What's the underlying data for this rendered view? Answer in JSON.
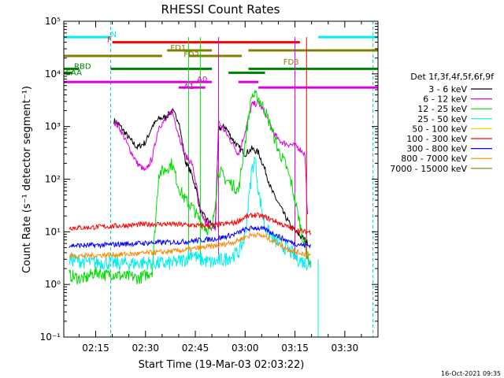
{
  "chart_data": {
    "type": "line",
    "title": "RHESSI Count Rates",
    "xlabel": "Start Time (19-Mar-03 02:03:22)",
    "ylabel": "Count Rate (s⁻¹ detector segment⁻¹)",
    "y_scale": "log",
    "ylim": [
      0.1,
      100000
    ],
    "xlim_minutes": [
      5.4,
      100
    ],
    "x_ticks": [
      {
        "label": "02:15",
        "min": 15
      },
      {
        "label": "02:30",
        "min": 30
      },
      {
        "label": "02:45",
        "min": 45
      },
      {
        "label": "03:00",
        "min": 60
      },
      {
        "label": "03:15",
        "min": 75
      },
      {
        "label": "03:30",
        "min": 90
      }
    ],
    "y_ticks": [
      {
        "label": "10⁻¹",
        "v": 0.1
      },
      {
        "label": "10⁰",
        "v": 1
      },
      {
        "label": "10¹",
        "v": 10
      },
      {
        "label": "10²",
        "v": 100
      },
      {
        "label": "10³",
        "v": 1000
      },
      {
        "label": "10⁴",
        "v": 10000
      },
      {
        "label": "10⁵",
        "v": 100000
      }
    ],
    "legend_title": "Det 1f,3f,4f,5f,6f,9f",
    "legend_placement": "right",
    "series": [
      {
        "name": "3 - 6 keV",
        "color": "#000000",
        "x": [
          19.8,
          20.5,
          22,
          25,
          27.5,
          30,
          32,
          34,
          36,
          38,
          40,
          42,
          44,
          45.5,
          46.5,
          48,
          50,
          51,
          52,
          54,
          56,
          58,
          60,
          62,
          64,
          66,
          68,
          70,
          72,
          74,
          76,
          78,
          79
        ],
        "y": [
          null,
          1300,
          1100,
          600,
          400,
          500,
          1000,
          1400,
          1500,
          2000,
          1300,
          220,
          120,
          55,
          25,
          18,
          14,
          12,
          900,
          1000,
          600,
          400,
          300,
          380,
          320,
          150,
          60,
          35,
          20,
          12,
          9,
          7,
          6
        ]
      },
      {
        "name": "6 - 12 keV",
        "color": "#dd00dd",
        "x": [
          19.8,
          20.5,
          22,
          25,
          27.5,
          30,
          32,
          34,
          36,
          38,
          40,
          42,
          44,
          45.5,
          46.5,
          48,
          50,
          51,
          52,
          54,
          56,
          58,
          60,
          62,
          64,
          66,
          68,
          70,
          72,
          74,
          76,
          78,
          79
        ],
        "y": [
          null,
          1200,
          1000,
          400,
          200,
          140,
          250,
          1000,
          1300,
          2000,
          700,
          280,
          200,
          65,
          25,
          15,
          12,
          10,
          1200,
          800,
          500,
          300,
          800,
          2600,
          2800,
          1800,
          900,
          550,
          480,
          450,
          400,
          300,
          10
        ]
      },
      {
        "name": "12 - 25 keV",
        "color": "#00dd00",
        "x": [
          7,
          10,
          12,
          14,
          16,
          18,
          20,
          22,
          24,
          26,
          28,
          30,
          32,
          34,
          36,
          38,
          40,
          42,
          44,
          46,
          48,
          50,
          52,
          54,
          56,
          58,
          60,
          62,
          64,
          66,
          68,
          70,
          72,
          74,
          76,
          78,
          80
        ],
        "y": [
          1.5,
          1.3,
          1.3,
          1.6,
          1.7,
          1.5,
          1.6,
          1.5,
          1.4,
          1.4,
          1.3,
          1.5,
          1.8,
          130,
          150,
          200,
          70,
          40,
          30,
          18,
          12,
          10,
          150,
          100,
          80,
          60,
          500,
          4000,
          3500,
          2000,
          900,
          350,
          200,
          80,
          20,
          5,
          2
        ]
      },
      {
        "name": "25 - 50 keV",
        "color": "#00eeee",
        "x": [
          7,
          10,
          14,
          18,
          22,
          26,
          30,
          34,
          38,
          42,
          44,
          46,
          48,
          50,
          52,
          54,
          56,
          58,
          60,
          62,
          63,
          64,
          66,
          68,
          70,
          72,
          74,
          76,
          78,
          80
        ],
        "y": [
          3,
          2.8,
          2.6,
          2.6,
          2.5,
          2.5,
          2.6,
          2.5,
          2.5,
          3,
          4,
          3,
          2.8,
          2.6,
          2.8,
          3,
          3.5,
          4,
          8,
          150,
          250,
          60,
          12,
          8,
          6,
          5,
          4,
          3,
          2.6,
          2.5
        ]
      },
      {
        "name": "50 - 100 keV",
        "color": "#ffd400",
        "x": [],
        "y": []
      },
      {
        "name": "100 - 300 keV",
        "color": "#ff0000",
        "x": [
          7,
          12,
          17,
          22,
          27,
          32,
          37,
          42,
          47,
          52,
          57,
          60,
          63,
          66,
          69,
          72,
          75,
          78,
          80
        ],
        "y": [
          12,
          12,
          12.5,
          13,
          13.5,
          14,
          14,
          13.5,
          13,
          13.5,
          15,
          19,
          21,
          19,
          16,
          13,
          11,
          10,
          10
        ]
      },
      {
        "name": "300 - 800 keV",
        "color": "#0000ff",
        "x": [
          7,
          12,
          17,
          22,
          27,
          32,
          37,
          42,
          47,
          52,
          57,
          60,
          63,
          66,
          69,
          72,
          75,
          78,
          80
        ],
        "y": [
          5.5,
          5.5,
          5.6,
          5.8,
          6,
          6.2,
          6.3,
          6.5,
          7,
          7.5,
          9,
          11,
          12,
          11,
          9,
          7,
          6,
          5.5,
          5.5
        ]
      },
      {
        "name": "800 - 7000 keV",
        "color": "#ff8800",
        "x": [
          7,
          12,
          17,
          22,
          27,
          32,
          37,
          42,
          47,
          52,
          57,
          60,
          63,
          66,
          69,
          72,
          75,
          78,
          80
        ],
        "y": [
          3.5,
          3.5,
          3.6,
          3.7,
          3.8,
          4,
          4.2,
          4.5,
          5,
          5.5,
          6.5,
          8,
          9,
          8,
          6.5,
          5,
          4.2,
          3.8,
          3.6
        ]
      },
      {
        "name": "7000 - 15000 keV",
        "color": "#808000",
        "x": [],
        "y": []
      }
    ],
    "annotations": [
      {
        "label": "N",
        "color": "#00eeee",
        "x": 19.5,
        "y": 50000
      },
      {
        "label": "F",
        "color": "#ff0000",
        "x": 18.5,
        "y": 40000
      },
      {
        "label": "FD1",
        "color": "#808000",
        "x": 37.5,
        "y": 28000
      },
      {
        "label": "FD2",
        "color": "#808000",
        "x": 41.5,
        "y": 21000
      },
      {
        "label": "FD3",
        "color": "#808000",
        "x": 71.5,
        "y": 15000
      },
      {
        "label": "RBD",
        "color": "#008000",
        "x": 8.5,
        "y": 12500
      },
      {
        "label": "SAA",
        "color": "#008000",
        "x": 6,
        "y": 9500
      },
      {
        "label": "A1",
        "color": "#dd00dd",
        "x": 41.5,
        "y": 5200
      },
      {
        "label": "A0",
        "color": "#dd00dd",
        "x": 45.5,
        "y": 7000
      }
    ],
    "timestamp": "16-Oct-2021 09:35"
  }
}
